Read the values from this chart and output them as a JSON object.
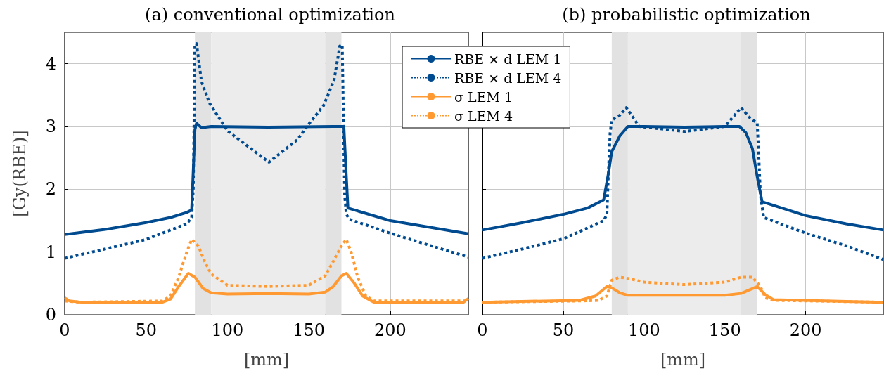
{
  "chart_data": [
    {
      "type": "line",
      "title": "(a) conventional optimization",
      "xlabel": "[mm]",
      "ylabel": "[Gy(RBE)]",
      "xlim": [
        0,
        248
      ],
      "ylim": [
        0,
        4.5
      ],
      "xticks": [
        0,
        50,
        100,
        150,
        200
      ],
      "yticks": [
        0,
        1,
        2,
        3,
        4
      ],
      "grid": true,
      "legend": "top right",
      "marker": "none",
      "bands": [
        {
          "axis": "x",
          "from": 80,
          "to": 90,
          "color": "#e2e2e2"
        },
        {
          "axis": "x",
          "from": 90,
          "to": 160,
          "color": "#ececec"
        },
        {
          "axis": "x",
          "from": 160,
          "to": 170,
          "color": "#e2e2e2"
        }
      ],
      "series": [
        {
          "name": "RBE × d LEM 1",
          "color": "#004a8f",
          "line_style": "solid",
          "x": [
            0,
            25,
            50,
            65,
            75,
            78,
            80,
            81,
            84,
            90,
            125,
            165,
            170,
            171.5,
            173,
            174,
            200,
            225,
            248
          ],
          "values": [
            1.28,
            1.36,
            1.47,
            1.55,
            1.63,
            1.67,
            2.95,
            3.05,
            2.98,
            3.0,
            2.99,
            3.0,
            3.0,
            3.0,
            2.2,
            1.7,
            1.5,
            1.39,
            1.29
          ]
        },
        {
          "name": "RBE × d LEM 4",
          "color": "#004a8f",
          "line_style": "dotted",
          "x": [
            0,
            25,
            50,
            75,
            78,
            79,
            80,
            81,
            84,
            89,
            100,
            125.5,
            143,
            150,
            159,
            165.5,
            169,
            170.5,
            172,
            173,
            175,
            200,
            225,
            248
          ],
          "values": [
            0.9,
            1.05,
            1.2,
            1.45,
            1.55,
            2.0,
            4.3,
            4.32,
            3.72,
            3.37,
            2.93,
            2.43,
            2.79,
            3.04,
            3.33,
            3.74,
            4.28,
            4.3,
            1.9,
            1.6,
            1.52,
            1.3,
            1.1,
            0.92
          ]
        },
        {
          "name": "σ LEM 1",
          "color": "#ff9a33",
          "line_style": "solid",
          "x": [
            0,
            3,
            10,
            60,
            65,
            70,
            76,
            80,
            85,
            90,
            100,
            125,
            150,
            160,
            165,
            170,
            173,
            178,
            183,
            190,
            245,
            248
          ],
          "values": [
            0.27,
            0.22,
            0.2,
            0.2,
            0.25,
            0.45,
            0.66,
            0.6,
            0.42,
            0.35,
            0.33,
            0.34,
            0.33,
            0.36,
            0.45,
            0.62,
            0.66,
            0.5,
            0.3,
            0.2,
            0.2,
            0.26
          ]
        },
        {
          "name": "σ LEM 4",
          "color": "#ff9a33",
          "line_style": "dotted",
          "x": [
            0,
            10,
            60,
            65,
            70,
            75,
            78,
            82,
            86,
            90,
            100,
            125,
            150,
            160,
            165,
            170,
            173,
            176,
            180,
            185,
            190,
            248
          ],
          "values": [
            0.22,
            0.2,
            0.22,
            0.3,
            0.6,
            1.0,
            1.2,
            1.1,
            0.85,
            0.65,
            0.47,
            0.45,
            0.47,
            0.62,
            0.85,
            1.1,
            1.2,
            1.0,
            0.6,
            0.3,
            0.22,
            0.22
          ]
        }
      ]
    },
    {
      "type": "line",
      "title": "(b) probabilistic optimization",
      "xlabel": "[mm]",
      "xlim": [
        0,
        248
      ],
      "ylim": [
        0,
        4.5
      ],
      "xticks": [
        0,
        50,
        100,
        150,
        200
      ],
      "yticks": [
        0,
        1,
        2,
        3,
        4
      ],
      "tick_labels": "x",
      "grid": true,
      "marker": "none",
      "bands": [
        {
          "axis": "x",
          "from": 80,
          "to": 90,
          "color": "#e2e2e2"
        },
        {
          "axis": "x",
          "from": 90,
          "to": 160,
          "color": "#ececec"
        },
        {
          "axis": "x",
          "from": 160,
          "to": 170,
          "color": "#e2e2e2"
        }
      ],
      "series": [
        {
          "color": "#004a8f",
          "line_style": "solid",
          "x": [
            0,
            25,
            50,
            65,
            75,
            78,
            80,
            85,
            90,
            100,
            125,
            150,
            159,
            163,
            167,
            170,
            173,
            200,
            225,
            248
          ],
          "values": [
            1.35,
            1.47,
            1.6,
            1.7,
            1.83,
            2.26,
            2.6,
            2.85,
            3.0,
            3.0,
            2.99,
            3.0,
            3.0,
            2.9,
            2.65,
            2.2,
            1.8,
            1.58,
            1.45,
            1.35
          ]
        },
        {
          "color": "#004a8f",
          "line_style": "dotted",
          "x": [
            0,
            25,
            50,
            75,
            77,
            78,
            79,
            80,
            85,
            89,
            93,
            97,
            125,
            150,
            155,
            160,
            165,
            170,
            171,
            172,
            174,
            200,
            225,
            248
          ],
          "values": [
            0.9,
            1.05,
            1.21,
            1.5,
            1.6,
            2.3,
            2.9,
            3.1,
            3.18,
            3.3,
            3.15,
            3.0,
            2.92,
            3.0,
            3.15,
            3.3,
            3.15,
            3.05,
            2.5,
            1.9,
            1.55,
            1.3,
            1.1,
            0.88
          ]
        },
        {
          "color": "#ff9a33",
          "line_style": "solid",
          "x": [
            0,
            60,
            70,
            77,
            80,
            85,
            90,
            150,
            160,
            170,
            175,
            180,
            248
          ],
          "values": [
            0.2,
            0.23,
            0.3,
            0.45,
            0.43,
            0.35,
            0.31,
            0.31,
            0.34,
            0.45,
            0.32,
            0.24,
            0.2
          ]
        },
        {
          "color": "#ff9a33",
          "line_style": "dotted",
          "x": [
            0,
            60,
            72,
            77,
            80,
            85,
            90,
            100,
            125,
            150,
            160,
            167,
            172,
            175,
            180,
            248
          ],
          "values": [
            0.2,
            0.22,
            0.23,
            0.3,
            0.55,
            0.6,
            0.58,
            0.52,
            0.48,
            0.52,
            0.6,
            0.6,
            0.45,
            0.27,
            0.23,
            0.2
          ]
        }
      ]
    }
  ]
}
